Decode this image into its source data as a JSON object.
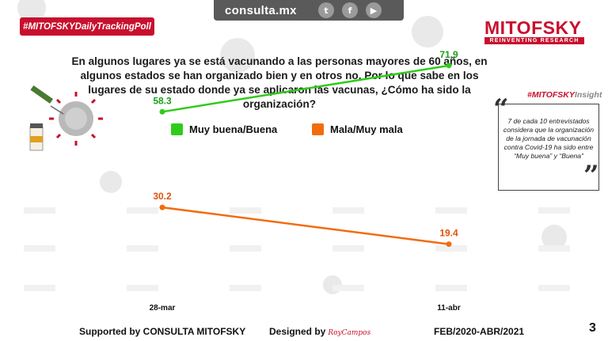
{
  "topbar": {
    "url": "consulta.mx",
    "icons": [
      "twitter-icon",
      "facebook-icon",
      "youtube-icon"
    ]
  },
  "hashtag": "#MITOFSKYDailyTrackingPoll",
  "logo": {
    "name": "MITOFSKY",
    "tagline": "REINVENTING RESEARCH",
    "color": "#c8102e"
  },
  "question": "En algunos lugares ya se está vacunando a las personas mayores de 60 años, en algunos estados se han organizado bien y en otros no. Por lo que sabe en los lugares de su estado donde ya se aplicaron las vacunas, ¿Cómo ha sido la organización?",
  "insight": {
    "tag_prefix": "#MITOFSKY",
    "tag_suffix": "Insight",
    "text": "7 de cada 10 entrevistados considera que la organización de la jornada de vacunación contra Covid-19 ha sido  entre  “Muy buena” y “Buena”"
  },
  "legend": [
    {
      "label": "Muy buena/Buena",
      "color": "#2ecc1a"
    },
    {
      "label": "Mala/Muy mala",
      "color": "#f26c0d"
    }
  ],
  "chart_data": {
    "type": "line",
    "x": [
      "28-mar",
      "11-abr"
    ],
    "series": [
      {
        "name": "Muy buena/Buena",
        "values": [
          58.3,
          71.9
        ],
        "color": "#2ecc1a",
        "label_color": "#1a9e1a"
      },
      {
        "name": "Mala/Muy mala",
        "values": [
          30.2,
          19.4
        ],
        "color": "#f26c0d",
        "label_color": "#e0520a"
      }
    ],
    "grid": false
  },
  "footer": {
    "supported": "Supported by  CONSULTA  MITOFSKY",
    "designed": "Designed by",
    "signature": "RoyCampos",
    "period": "FEB/2020-ABR/2021"
  },
  "page_number": "3"
}
